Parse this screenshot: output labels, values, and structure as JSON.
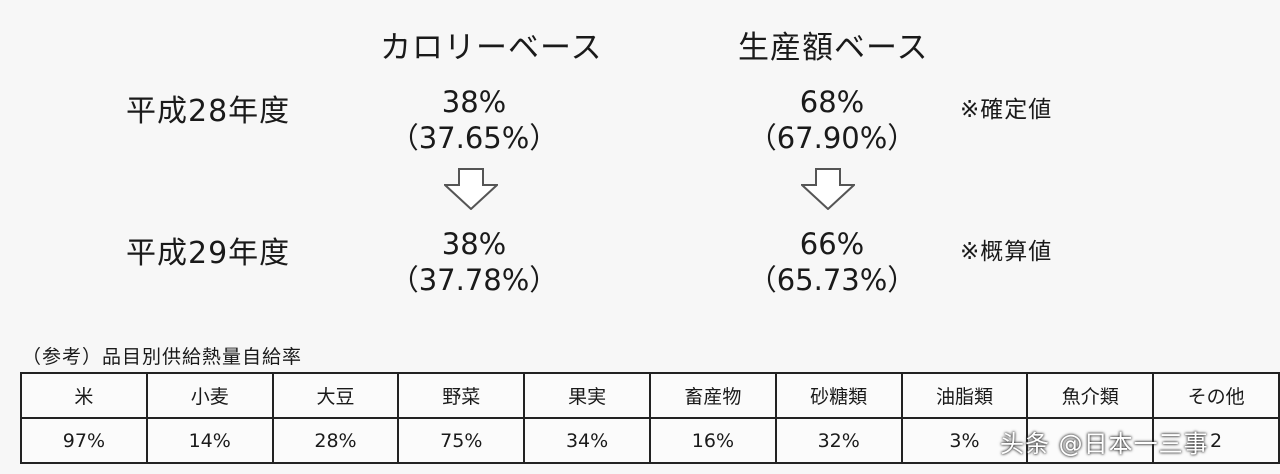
{
  "headers": {
    "calorie": "カロリーベース",
    "production": "生産額ベース"
  },
  "rows": [
    {
      "year": "平成28年度",
      "calorie_main": "38%",
      "calorie_detail": "（37.65%）",
      "production_main": "68%",
      "production_detail": "（67.90%）",
      "note": "※確定値"
    },
    {
      "year": "平成29年度",
      "calorie_main": "38%",
      "calorie_detail": "（37.78%）",
      "production_main": "66%",
      "production_detail": "（65.73%）",
      "note": "※概算値"
    }
  ],
  "arrow_icon": "down-arrow-icon",
  "reference": {
    "title": "（参考）品目別供給熱量自給率",
    "items": [
      "米",
      "小麦",
      "大豆",
      "野菜",
      "果実",
      "畜産物",
      "砂糖類",
      "油脂類",
      "魚介類",
      "その他"
    ],
    "values": [
      "97%",
      "14%",
      "28%",
      "75%",
      "34%",
      "16%",
      "32%",
      "3%",
      "",
      "2"
    ]
  },
  "watermark": "头条 @日本一三事",
  "colors": {
    "background": "#f7f7f7",
    "text": "#1a1a1a",
    "arrow_stroke": "#555555",
    "arrow_fill": "#ffffff"
  }
}
